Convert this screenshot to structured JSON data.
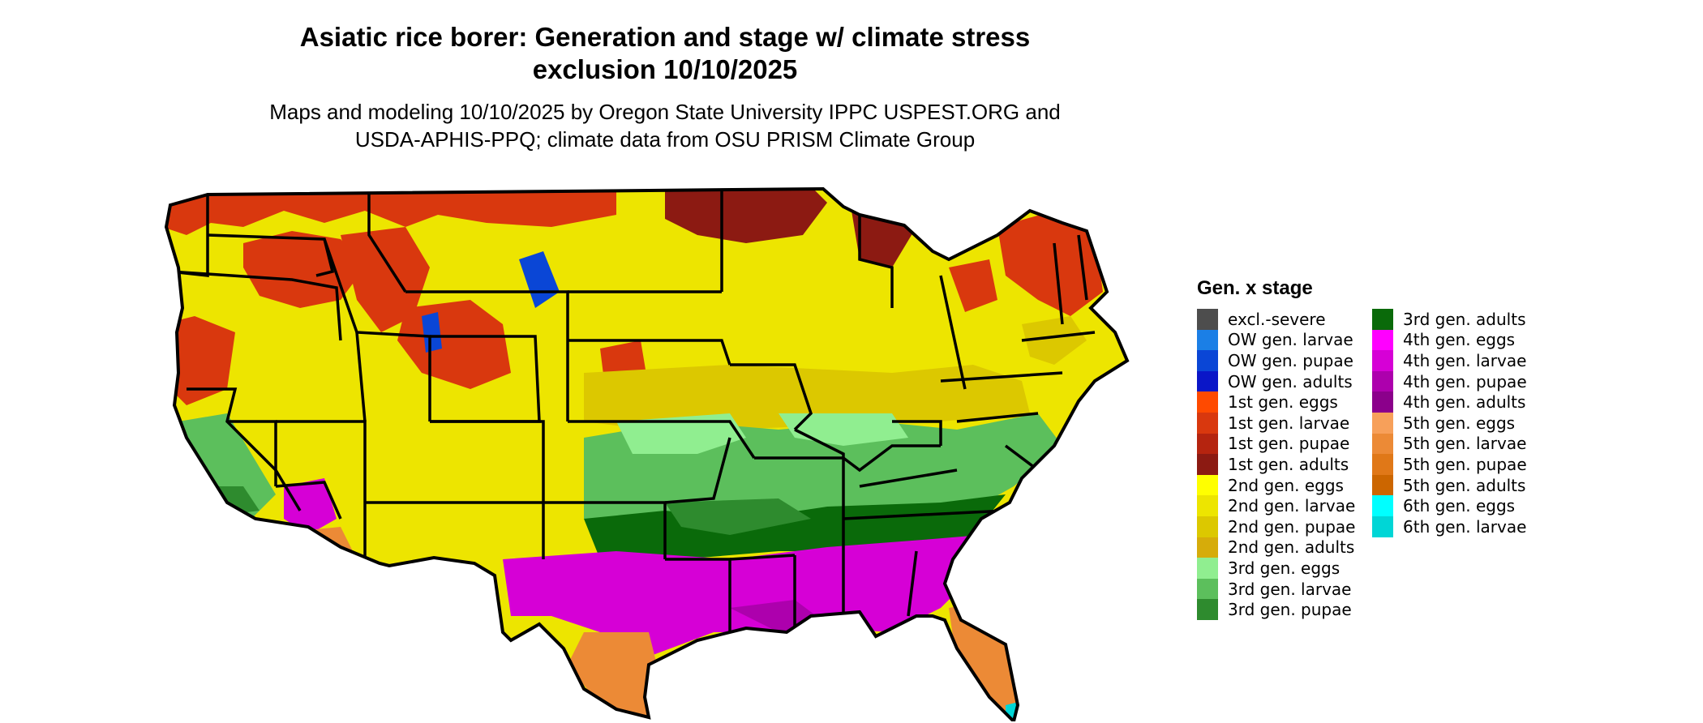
{
  "header": {
    "title_line1": "Asiatic rice borer: Generation and stage w/ climate stress",
    "title_line2": "exclusion 10/10/2025",
    "subtitle_line1": "Maps and modeling 10/10/2025 by Oregon State University IPPC USPEST.ORG and",
    "subtitle_line2": "USDA-APHIS-PPQ; climate data from OSU PRISM Climate Group"
  },
  "legend": {
    "title": "Gen. x stage",
    "column1": [
      {
        "label": "excl.-severe",
        "color": "#4d4d4d"
      },
      {
        "label": "OW gen. larvae",
        "color": "#1b7fe6"
      },
      {
        "label": "OW gen. pupae",
        "color": "#0a46d6"
      },
      {
        "label": "OW gen. adults",
        "color": "#0a16c8"
      },
      {
        "label": "1st gen. eggs",
        "color": "#ff4a00"
      },
      {
        "label": "1st gen. larvae",
        "color": "#d9380e"
      },
      {
        "label": "1st gen. pupae",
        "color": "#b5240f"
      },
      {
        "label": "1st gen. adults",
        "color": "#8c1a12"
      },
      {
        "label": "2nd gen. eggs",
        "color": "#ffff00"
      },
      {
        "label": "2nd gen. larvae",
        "color": "#ede500"
      },
      {
        "label": "2nd gen. pupae",
        "color": "#dcc800"
      },
      {
        "label": "2nd gen. adults",
        "color": "#d6ac0a"
      },
      {
        "label": "3rd gen. eggs",
        "color": "#90ee90"
      },
      {
        "label": "3rd gen. larvae",
        "color": "#5cbf5c"
      },
      {
        "label": "3rd gen. pupae",
        "color": "#2e8b2e"
      }
    ],
    "column2": [
      {
        "label": "3rd gen. adults",
        "color": "#0a6a0a"
      },
      {
        "label": "4th gen. eggs",
        "color": "#ff00ff"
      },
      {
        "label": "4th gen. larvae",
        "color": "#d600d6"
      },
      {
        "label": "4th gen. pupae",
        "color": "#ad00ad"
      },
      {
        "label": "4th gen. adults",
        "color": "#8b008b"
      },
      {
        "label": "5th gen. eggs",
        "color": "#f7a05a"
      },
      {
        "label": "5th gen. larvae",
        "color": "#ec8a36"
      },
      {
        "label": "5th gen. pupae",
        "color": "#e07818"
      },
      {
        "label": "5th gen. adults",
        "color": "#cc6600"
      },
      {
        "label": "6th gen. eggs",
        "color": "#00ffff"
      },
      {
        "label": "6th gen. larvae",
        "color": "#00d6d6"
      }
    ]
  }
}
